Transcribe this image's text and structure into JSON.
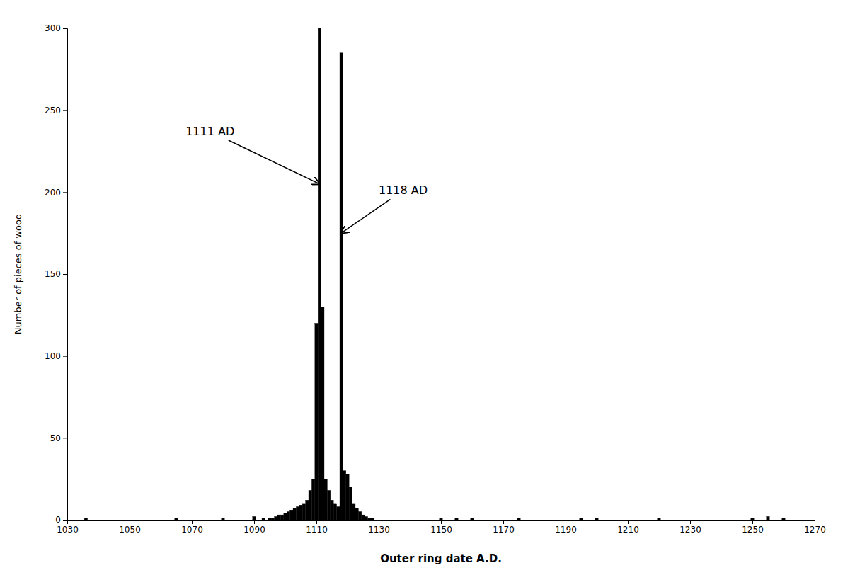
{
  "chart_data": {
    "type": "bar",
    "title": "",
    "xlabel": "Outer ring date A.D.",
    "ylabel": "Number of pieces of wood",
    "x": [
      1036,
      1065,
      1080,
      1090,
      1093,
      1095,
      1096,
      1097,
      1098,
      1099,
      1100,
      1101,
      1102,
      1103,
      1104,
      1105,
      1106,
      1107,
      1108,
      1109,
      1110,
      1111,
      1112,
      1113,
      1114,
      1115,
      1116,
      1117,
      1118,
      1119,
      1120,
      1121,
      1122,
      1123,
      1124,
      1125,
      1126,
      1127,
      1128,
      1150,
      1155,
      1160,
      1175,
      1195,
      1200,
      1220,
      1250,
      1255,
      1260
    ],
    "values": [
      1,
      1,
      1,
      2,
      1,
      1,
      1,
      2,
      3,
      3,
      4,
      5,
      6,
      7,
      8,
      9,
      10,
      12,
      18,
      25,
      120,
      300,
      130,
      25,
      18,
      12,
      10,
      8,
      285,
      30,
      28,
      20,
      10,
      7,
      5,
      3,
      2,
      1,
      1,
      1,
      1,
      1,
      1,
      1,
      1,
      1,
      1,
      2,
      1
    ],
    "color": "#000000",
    "xlim": [
      1030,
      1270
    ],
    "ylim": [
      0,
      300
    ],
    "xticks": [
      1030,
      1050,
      1070,
      1090,
      1110,
      1130,
      1150,
      1170,
      1190,
      1210,
      1230,
      1250,
      1270
    ],
    "yticks": [
      0,
      50,
      100,
      150,
      200,
      250,
      300
    ],
    "grid": false,
    "annotations": [
      {
        "text": "1111 AD",
        "xy": [
          1111,
          205
        ],
        "xytext": [
          1068,
          233
        ]
      },
      {
        "text": "1118 AD",
        "xy": [
          1118,
          175
        ],
        "xytext": [
          1130,
          197
        ]
      }
    ]
  }
}
